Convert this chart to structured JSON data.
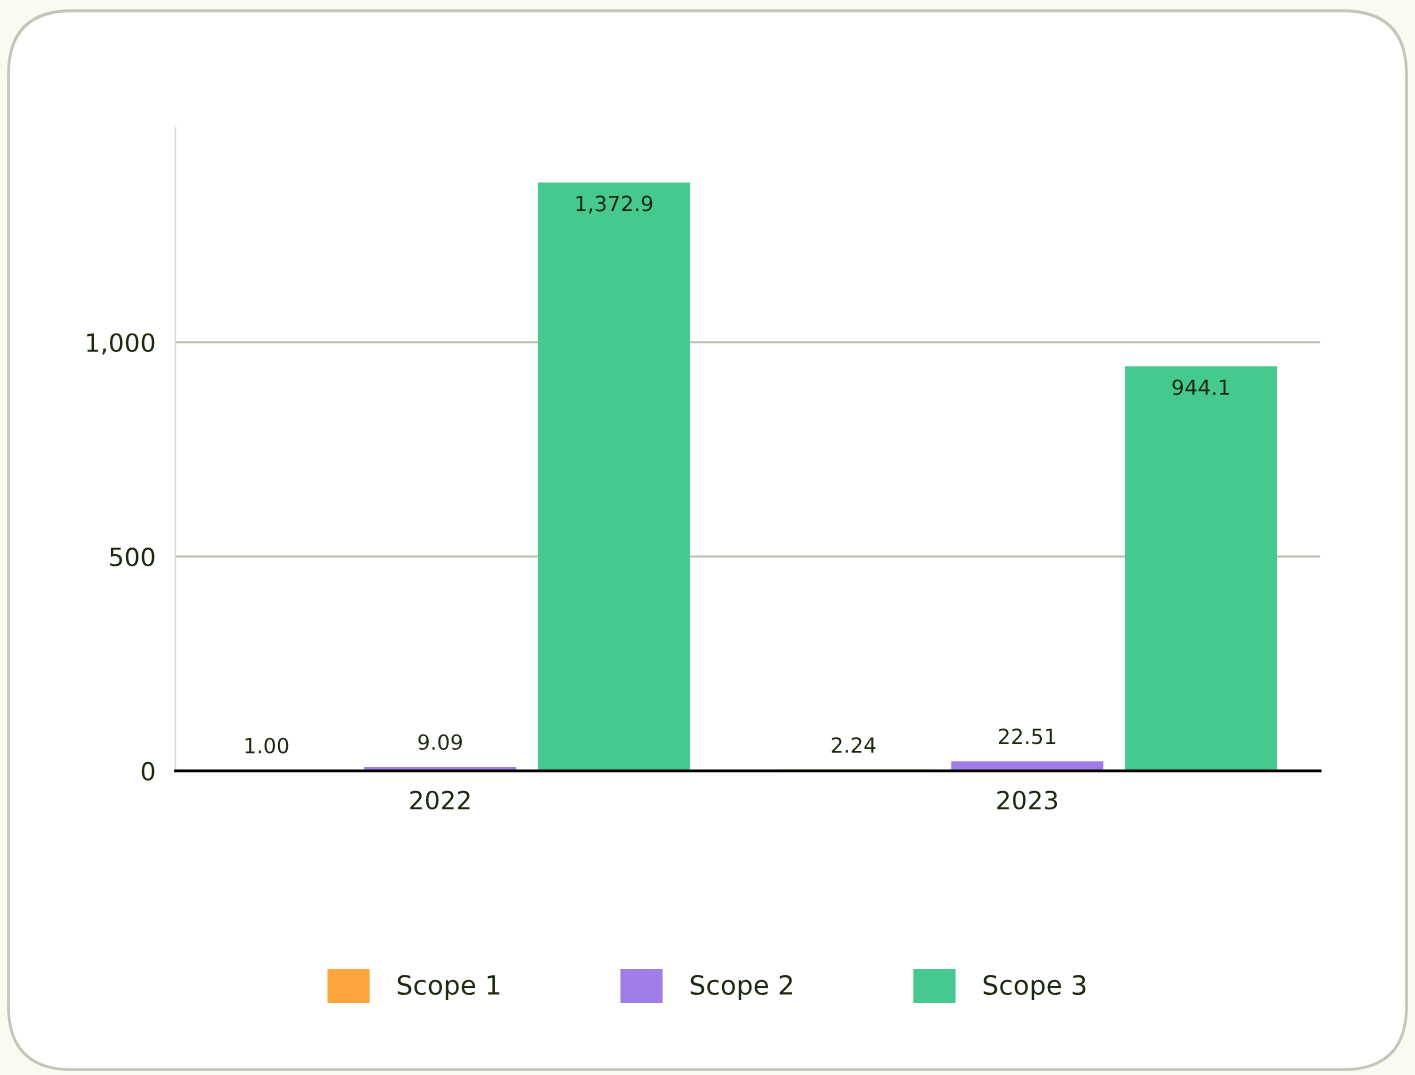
{
  "chart_data": {
    "type": "bar",
    "categories": [
      "2022",
      "2023"
    ],
    "series": [
      {
        "name": "Scope 1",
        "color": "#ffa53f",
        "values": [
          1.0,
          2.24
        ],
        "value_labels": [
          "1.00",
          "2.24"
        ]
      },
      {
        "name": "Scope 2",
        "color": "#a07ee8",
        "values": [
          9.09,
          22.51
        ],
        "value_labels": [
          "9.09",
          "22.51"
        ]
      },
      {
        "name": "Scope 3",
        "color": "#45c98e",
        "values": [
          1372.9,
          944.1
        ],
        "value_labels": [
          "1,372.9",
          "944.1"
        ]
      }
    ],
    "ylim": [
      0,
      1500
    ],
    "yticks": [
      0,
      {
        "value": 500,
        "label": "500"
      },
      {
        "value": 1000,
        "label": "1,000"
      }
    ],
    "grid": "y",
    "legend": "bottom"
  }
}
